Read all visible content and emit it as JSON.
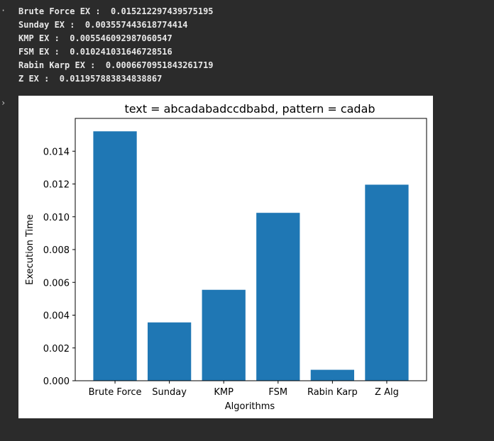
{
  "output": {
    "lines": [
      "Brute Force EX :  0.015212297439575195",
      "Sunday EX :  0.003557443618774414",
      "KMP EX :  0.005546092987060547",
      "FSM EX :  0.010241031646728516",
      "Rabin Karp EX :  0.0006670951843261719",
      "Z EX :  0.011957883834838867"
    ]
  },
  "gutter": {
    "marks": [
      "·",
      "›"
    ]
  },
  "chart_data": {
    "type": "bar",
    "title": "text = abcadabadccdbabd, pattern = cadab",
    "xlabel": "Algorithms",
    "ylabel": "Execution Time",
    "categories": [
      "Brute Force",
      "Sunday",
      "KMP",
      "FSM",
      "Rabin Karp",
      "Z Alg"
    ],
    "values": [
      0.015212297439575195,
      0.003557443618774414,
      0.005546092987060547,
      0.010241031646728516,
      0.0006670951843261719,
      0.011957883834838867
    ],
    "yticks": [
      "0.000",
      "0.002",
      "0.004",
      "0.006",
      "0.008",
      "0.010",
      "0.012",
      "0.014"
    ],
    "ylim": [
      0,
      0.016
    ],
    "bar_color": "#1f77b4",
    "grid": false,
    "legend": "none"
  }
}
